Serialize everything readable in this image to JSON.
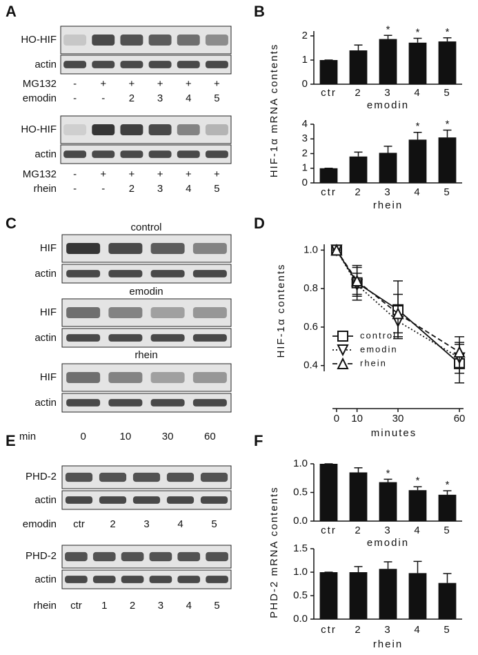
{
  "panels": [
    "A",
    "B",
    "C",
    "D",
    "E",
    "F"
  ],
  "blots": {
    "A": [
      {
        "bands": [
          "HO-HIF",
          "actin"
        ],
        "conditions": [
          {
            "name": "MG132",
            "lanes": [
              "-",
              "+",
              "+",
              "+",
              "+",
              "+"
            ]
          },
          {
            "name": "emodin",
            "lanes": [
              "-",
              "-",
              "2",
              "3",
              "4",
              "5"
            ]
          }
        ]
      },
      {
        "bands": [
          "HO-HIF",
          "actin"
        ],
        "conditions": [
          {
            "name": "MG132",
            "lanes": [
              "-",
              "+",
              "+",
              "+",
              "+",
              "+"
            ]
          },
          {
            "name": "rhein",
            "lanes": [
              "-",
              "-",
              "2",
              "3",
              "4",
              "5"
            ]
          }
        ]
      }
    ],
    "C": {
      "groups": [
        {
          "title": "control",
          "bands": [
            "HIF",
            "actin"
          ]
        },
        {
          "title": "emodin",
          "bands": [
            "HIF",
            "actin"
          ]
        },
        {
          "title": "rhein",
          "bands": [
            "HIF",
            "actin"
          ]
        }
      ],
      "time": {
        "name": "min",
        "lanes": [
          "0",
          "10",
          "30",
          "60"
        ]
      }
    },
    "E": [
      {
        "bands": [
          "PHD-2",
          "actin"
        ],
        "conditions": [
          {
            "name": "emodin",
            "lanes": [
              "ctr",
              "2",
              "3",
              "4",
              "5"
            ]
          }
        ]
      },
      {
        "bands": [
          "PHD-2",
          "actin"
        ],
        "conditions": [
          {
            "name": "rhein",
            "lanes": [
              "ctr",
              "1",
              "2",
              "3",
              "4",
              "5"
            ]
          }
        ]
      }
    ]
  },
  "chart_data": [
    {
      "type": "bar",
      "ylabel": "HIF-1α mRNA contents",
      "xlabel": "emodin",
      "categories": [
        "ctr",
        "2",
        "3",
        "4",
        "5"
      ],
      "values": [
        1,
        1.4,
        1.87,
        1.72,
        1.77
      ],
      "errors": [
        0,
        0.22,
        0.15,
        0.18,
        0.15
      ],
      "stars": [
        null,
        null,
        "*",
        "*",
        "*"
      ],
      "color": "#111111",
      "ylim": [
        0,
        2.2
      ],
      "yticks": [
        0,
        1,
        2
      ]
    },
    {
      "type": "bar",
      "xlabel": "rhein",
      "categories": [
        "ctr",
        "2",
        "3",
        "4",
        "5"
      ],
      "values": [
        1,
        1.8,
        2.05,
        2.95,
        3.1
      ],
      "errors": [
        0,
        0.3,
        0.45,
        0.5,
        0.5
      ],
      "stars": [
        null,
        null,
        null,
        "*",
        "*"
      ],
      "color": "#111111",
      "ylim": [
        0,
        4
      ],
      "yticks": [
        0,
        1,
        2,
        3,
        4
      ]
    },
    {
      "type": "line",
      "ylabel": "HIF-1α contents",
      "xlabel": "minutes",
      "x": [
        0,
        10,
        30,
        60
      ],
      "xlim": [
        -2,
        62
      ],
      "xticks": [
        0,
        10,
        30,
        60
      ],
      "ylim": [
        0.37,
        1.03
      ],
      "yticks": [
        {
          "value": 0.4,
          "label": "0.4"
        },
        {
          "value": 0.6,
          "label": "0.6"
        },
        {
          "value": 0.8,
          "label": "0.8"
        },
        {
          "value": 1,
          "label": "1.0"
        }
      ],
      "series": [
        {
          "name": "control",
          "color": "#111111",
          "marker": "square",
          "dash": "solid",
          "values": [
            1,
            0.83,
            0.69,
            0.41
          ],
          "errors": [
            0,
            0.09,
            0.15,
            0.1
          ]
        },
        {
          "name": "emodin",
          "color": "#111111",
          "marker": "triangle-down",
          "dash": "dotted",
          "values": [
            1,
            0.82,
            0.63,
            0.44
          ],
          "errors": [
            0,
            0.06,
            0.08,
            0.08
          ]
        },
        {
          "name": "rhein",
          "color": "#111111",
          "marker": "triangle-up",
          "dash": "dashed",
          "values": [
            1,
            0.84,
            0.67,
            0.47
          ],
          "errors": [
            0,
            0.07,
            0.1,
            0.08
          ]
        }
      ]
    },
    {
      "type": "bar",
      "ylabel": "PHD-2 mRNA contents",
      "xlabel": "emodin",
      "categories": [
        "ctr",
        "2",
        "3",
        "4",
        "5"
      ],
      "values": [
        1,
        0.85,
        0.68,
        0.54,
        0.46
      ],
      "errors": [
        0,
        0.08,
        0.05,
        0.06,
        0.07
      ],
      "stars": [
        null,
        null,
        "*",
        "*",
        "*"
      ],
      "color": "#111111",
      "ylim": [
        0,
        1
      ],
      "yticks": [
        {
          "value": 0,
          "label": "0.0"
        },
        {
          "value": 0.5,
          "label": "0.5"
        },
        {
          "value": 1,
          "label": "1.0"
        }
      ]
    },
    {
      "type": "bar",
      "xlabel": "rhein",
      "categories": [
        "ctr",
        "2",
        "3",
        "4",
        "5"
      ],
      "values": [
        1,
        1,
        1.07,
        0.98,
        0.77
      ],
      "errors": [
        0,
        0.12,
        0.15,
        0.25,
        0.2
      ],
      "color": "#111111",
      "ylim": [
        0,
        1.5
      ],
      "yticks": [
        {
          "value": 0,
          "label": "0.0"
        },
        {
          "value": 0.5,
          "label": "0.5"
        },
        {
          "value": 1,
          "label": "1.0"
        },
        {
          "value": 1.5,
          "label": "1.5"
        }
      ]
    }
  ]
}
